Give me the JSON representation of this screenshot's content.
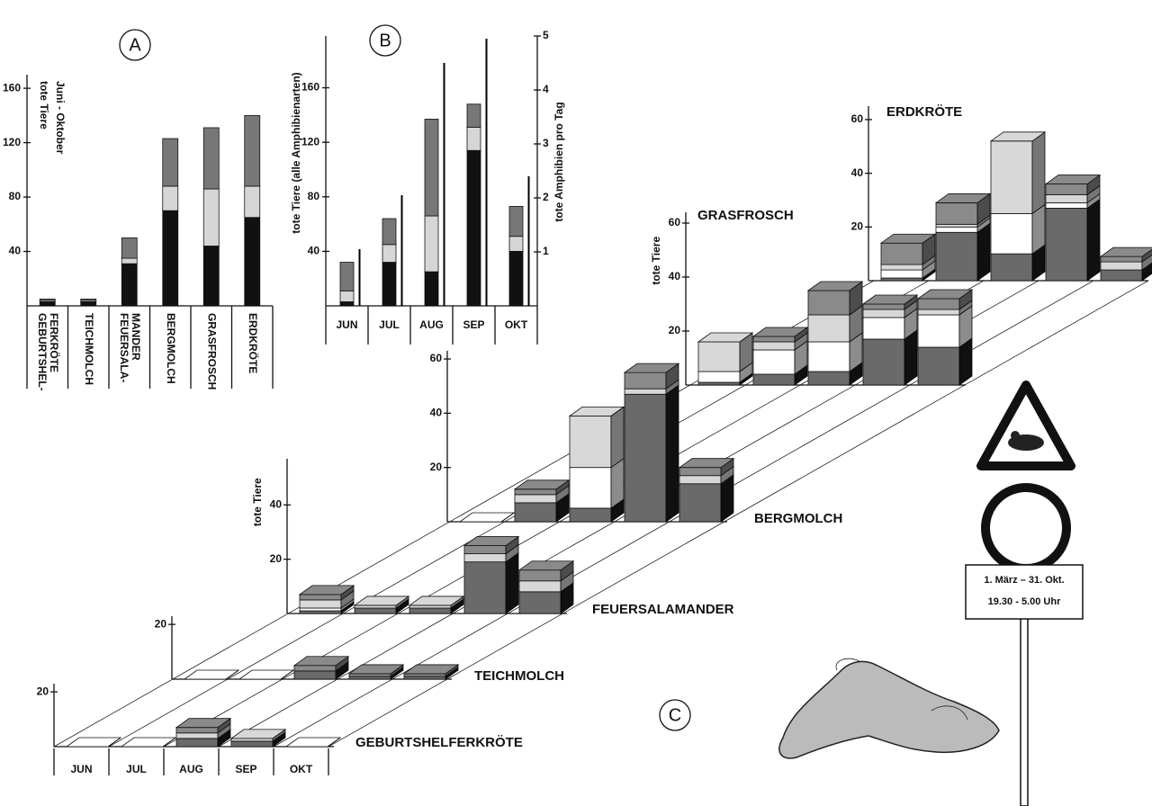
{
  "chart_data": [
    {
      "type": "bar",
      "label": "A",
      "ylabel": [
        "tote Tiere",
        "Juni - Oktober"
      ],
      "categories": [
        [
          "GEBURTSHEL-",
          "FERKRÖTE"
        ],
        [
          "TEICHMOLCH"
        ],
        [
          "FEUERSALA-",
          "MANDER"
        ],
        [
          "BERGMOLCH"
        ],
        [
          "GRASFROSCH"
        ],
        [
          "ERDKRÖTE"
        ]
      ],
      "ylim": [
        0,
        170
      ],
      "yticks": [
        40,
        80,
        120,
        160
      ],
      "series": [
        {
          "color": "#111111",
          "values": [
            3,
            3,
            31,
            70,
            44,
            65
          ]
        },
        {
          "color": "#d6d6d6",
          "values": [
            1,
            1,
            4,
            18,
            42,
            23
          ]
        },
        {
          "color": "#777777",
          "values": [
            1,
            1,
            15,
            35,
            45,
            52
          ]
        }
      ]
    },
    {
      "type": "bar",
      "label": "B",
      "ylabel": [
        "tote Tiere (alle Amphibienarten)"
      ],
      "y2label": "tote Amphibien pro Tag",
      "categories": [
        [
          "JUN"
        ],
        [
          "JUL"
        ],
        [
          "AUG"
        ],
        [
          "SEP"
        ],
        [
          "OKT"
        ]
      ],
      "ylim": [
        0,
        198
      ],
      "yticks": [
        40,
        80,
        120,
        160
      ],
      "y2lim": [
        0,
        5
      ],
      "y2ticks": [
        1,
        2,
        3,
        4,
        5
      ],
      "series": [
        {
          "color": "#111111",
          "values": [
            3,
            32,
            25,
            114,
            40
          ]
        },
        {
          "color": "#d6d6d6",
          "values": [
            8,
            13,
            41,
            17,
            11
          ]
        },
        {
          "color": "#777777",
          "values": [
            21,
            19,
            71,
            17,
            22
          ]
        },
        {
          "color": "#000000",
          "axis": "y2",
          "values": [
            1.05,
            2.05,
            4.5,
            4.95,
            2.4
          ]
        }
      ]
    },
    {
      "type": "bar3d",
      "label": "C",
      "ylabel": "tote Tiere",
      "categories": [
        "JUN",
        "JUL",
        "AUG",
        "SEP",
        "OKT"
      ],
      "colors": [
        "#6a6a6a",
        "#ffffff",
        "#d8d8d8",
        "#8a8a8a"
      ],
      "panels": [
        {
          "title": "ERDKRÖTE",
          "ylim": [
            0,
            65
          ],
          "yticks": [
            20,
            40,
            60
          ],
          "values": [
            [
              1,
              3,
              2,
              8
            ],
            [
              18,
              2,
              1,
              8
            ],
            [
              10,
              15,
              27,
              0
            ],
            [
              27,
              2,
              3,
              4
            ],
            [
              4,
              0,
              3,
              2
            ]
          ]
        },
        {
          "title": "GRASFROSCH",
          "ylim": [
            0,
            64
          ],
          "yticks": [
            20,
            40,
            60
          ],
          "values": [
            [
              1,
              4,
              11,
              0
            ],
            [
              4,
              9,
              3,
              2
            ],
            [
              5,
              11,
              10,
              9
            ],
            [
              17,
              8,
              3,
              2
            ],
            [
              14,
              12,
              2,
              4
            ]
          ]
        },
        {
          "title": "BERGMOLCH",
          "ylim": [
            0,
            63
          ],
          "yticks": [
            20,
            40,
            60
          ],
          "values": [
            [
              0,
              0,
              0,
              0
            ],
            [
              7,
              0,
              3,
              2
            ],
            [
              5,
              15,
              19,
              0
            ],
            [
              47,
              0,
              2,
              6
            ],
            [
              14,
              0,
              3,
              3
            ]
          ]
        },
        {
          "title": "FEUERSALAMANDER",
          "ylim": [
            0,
            57
          ],
          "yticks": [
            20,
            40
          ],
          "values": [
            [
              1,
              1,
              3,
              2
            ],
            [
              2,
              0,
              1,
              0
            ],
            [
              2,
              0,
              1,
              0
            ],
            [
              19,
              0,
              3,
              3
            ],
            [
              8,
              0,
              4,
              4
            ]
          ]
        },
        {
          "title": "TEICHMOLCH",
          "ylim": [
            0,
            23
          ],
          "yticks": [
            20
          ],
          "values": [
            [
              0,
              0,
              0,
              0
            ],
            [
              0,
              0,
              0,
              0
            ],
            [
              3,
              0,
              0,
              2
            ],
            [
              1,
              0,
              0,
              1
            ],
            [
              1,
              0,
              0,
              1
            ]
          ]
        },
        {
          "title": "GEBURTSHELFERKRÖTE",
          "ylim": [
            0,
            23
          ],
          "yticks": [
            20
          ],
          "values": [
            [
              0,
              0,
              0,
              0
            ],
            [
              0,
              0,
              0,
              0
            ],
            [
              3,
              0,
              2,
              2
            ],
            [
              2,
              0,
              1,
              0
            ],
            [
              0,
              0,
              0,
              0
            ]
          ]
        }
      ]
    }
  ],
  "sign": {
    "lines": [
      "1. März – 31. Okt.",
      "19.30 - 5.00 Uhr"
    ]
  }
}
